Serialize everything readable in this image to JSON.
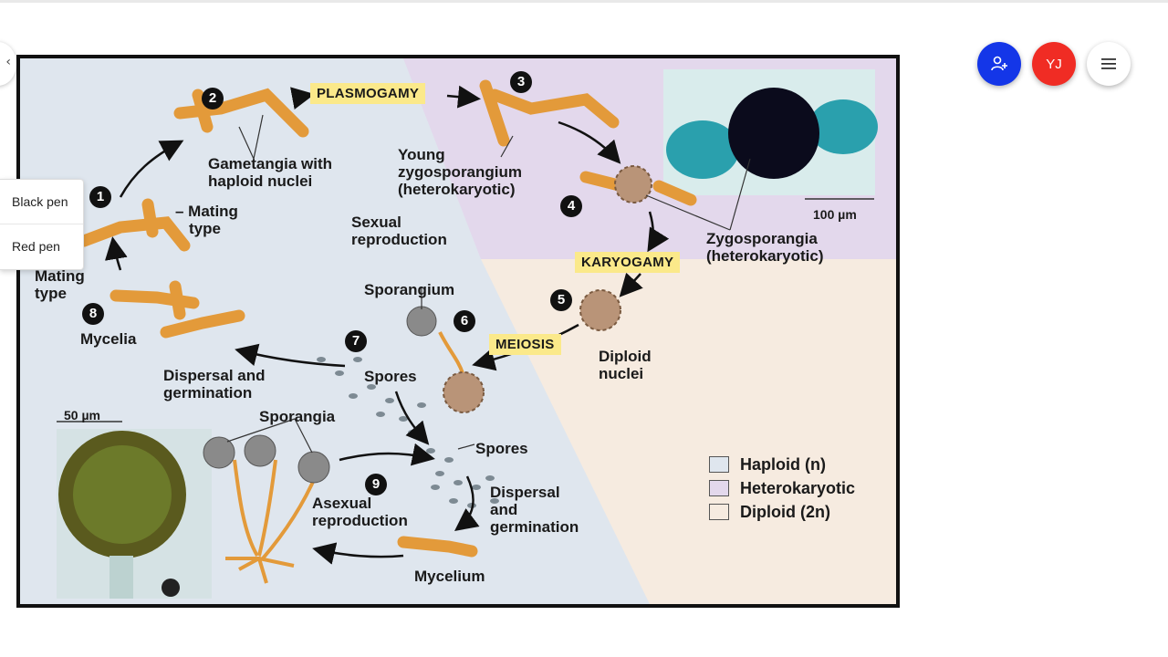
{
  "context_menu": {
    "items": [
      "Black pen",
      "Red pen"
    ]
  },
  "toolbar": {
    "user_initials": "YJ",
    "add_user_icon": "add-user-icon",
    "menu_icon": "hamburger-icon"
  },
  "diagram": {
    "steps": [
      "1",
      "2",
      "3",
      "4",
      "5",
      "6",
      "7",
      "8",
      "9"
    ],
    "tags": {
      "plasmogamy": "PLASMOGAMY",
      "karyogamy": "KARYOGAMY",
      "meiosis": "MEIOSIS"
    },
    "labels": {
      "gametangia_1": "Gametangia with",
      "gametangia_2": "haploid nuclei",
      "young_zygo_1": "Young",
      "young_zygo_2": "zygosporangium",
      "young_zygo_3": "(heterokaryotic)",
      "minus_mating_1": "– Mating",
      "minus_mating_2": "type",
      "sexual_1": "Sexual",
      "sexual_2": "reproduction",
      "zygosporangia_1": "Zygosporangia",
      "zygosporangia_2": "(heterokaryotic)",
      "plus_mating_1": "Mating",
      "plus_mating_2": "type",
      "sporangium": "Sporangium",
      "mycelia": "Mycelia",
      "dispersal_1": "Dispersal and",
      "dispersal_2": "germination",
      "spores_center": "Spores",
      "diploid_1": "Diploid",
      "diploid_2": "nuclei",
      "scale_50": "50 µm",
      "sporangia": "Sporangia",
      "spores_lower": "Spores",
      "asexual_1": "Asexual",
      "asexual_2": "reproduction",
      "dispersal_b1": "Dispersal",
      "dispersal_b2": "and",
      "dispersal_b3": "germination",
      "mycelium": "Mycelium",
      "scale_100": "100 µm"
    },
    "legend": [
      {
        "label": "Haploid (n)",
        "color": "#dfe6ee"
      },
      {
        "label": "Heterokaryotic",
        "color": "#e3d8ec"
      },
      {
        "label": "Diploid (2n)",
        "color": "#f6ebe0"
      }
    ]
  }
}
